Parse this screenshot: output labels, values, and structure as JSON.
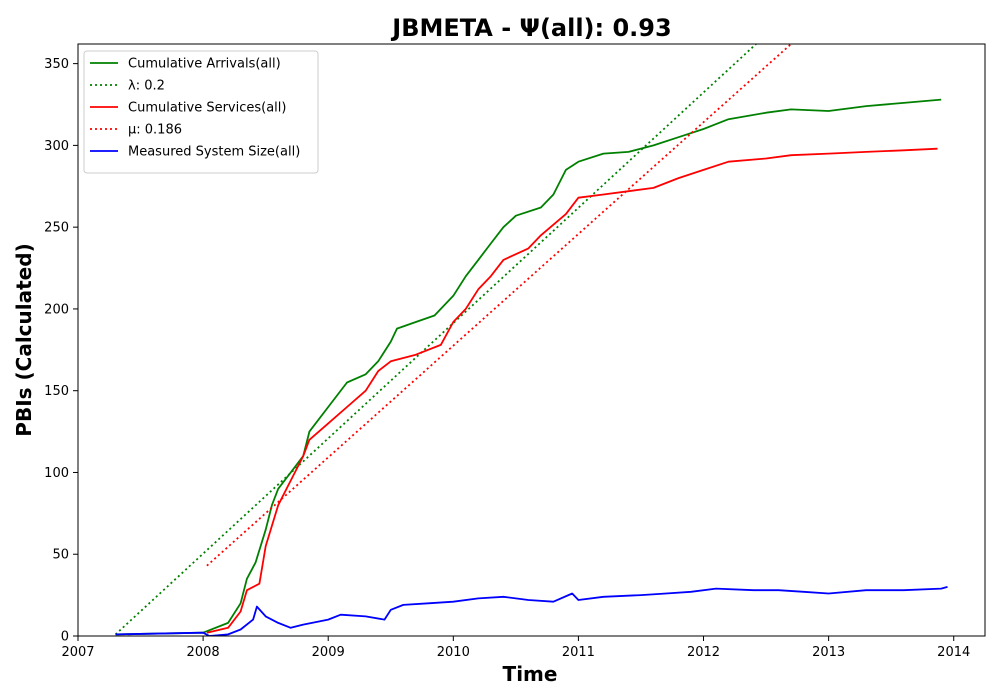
{
  "chart_data": {
    "type": "line",
    "title": "JBMETA -  Ψ(all): 0.93",
    "xlabel": "Time",
    "ylabel": "PBIs (Calculated)",
    "xlim": [
      2007.0,
      2014.25
    ],
    "ylim": [
      0,
      362
    ],
    "x_ticks": [
      2007,
      2008,
      2009,
      2010,
      2011,
      2012,
      2013,
      2014
    ],
    "y_ticks": [
      0,
      50,
      100,
      150,
      200,
      250,
      300,
      350
    ],
    "grid": false,
    "legend_position": "top-left",
    "series": [
      {
        "name": "Cumulative Arrivals(all)",
        "color": "#008000",
        "style": "solid",
        "points": [
          [
            2007.3,
            1
          ],
          [
            2008.0,
            2
          ],
          [
            2008.2,
            8
          ],
          [
            2008.3,
            20
          ],
          [
            2008.35,
            35
          ],
          [
            2008.42,
            45
          ],
          [
            2008.5,
            65
          ],
          [
            2008.55,
            80
          ],
          [
            2008.6,
            90
          ],
          [
            2008.7,
            100
          ],
          [
            2008.8,
            110
          ],
          [
            2008.85,
            125
          ],
          [
            2009.0,
            140
          ],
          [
            2009.15,
            155
          ],
          [
            2009.3,
            160
          ],
          [
            2009.4,
            168
          ],
          [
            2009.5,
            180
          ],
          [
            2009.55,
            188
          ],
          [
            2009.7,
            192
          ],
          [
            2009.85,
            196
          ],
          [
            2010.0,
            208
          ],
          [
            2010.1,
            220
          ],
          [
            2010.2,
            230
          ],
          [
            2010.3,
            240
          ],
          [
            2010.4,
            250
          ],
          [
            2010.5,
            257
          ],
          [
            2010.7,
            262
          ],
          [
            2010.8,
            270
          ],
          [
            2010.9,
            285
          ],
          [
            2011.0,
            290
          ],
          [
            2011.2,
            295
          ],
          [
            2011.4,
            296
          ],
          [
            2011.6,
            300
          ],
          [
            2011.8,
            305
          ],
          [
            2012.0,
            310
          ],
          [
            2012.2,
            316
          ],
          [
            2012.5,
            320
          ],
          [
            2012.7,
            322
          ],
          [
            2013.0,
            321
          ],
          [
            2013.3,
            324
          ],
          [
            2013.6,
            326
          ],
          [
            2013.9,
            328
          ]
        ]
      },
      {
        "name": "λ: 0.2",
        "color": "#008000",
        "style": "dotted",
        "points": [
          [
            2007.3,
            1
          ],
          [
            2012.42,
            362
          ]
        ]
      },
      {
        "name": "Cumulative Services(all)",
        "color": "#ff0000",
        "style": "solid",
        "points": [
          [
            2008.03,
            2
          ],
          [
            2008.2,
            5
          ],
          [
            2008.3,
            15
          ],
          [
            2008.35,
            28
          ],
          [
            2008.45,
            32
          ],
          [
            2008.5,
            55
          ],
          [
            2008.6,
            80
          ],
          [
            2008.7,
            95
          ],
          [
            2008.8,
            110
          ],
          [
            2008.85,
            120
          ],
          [
            2009.0,
            130
          ],
          [
            2009.15,
            140
          ],
          [
            2009.3,
            150
          ],
          [
            2009.4,
            162
          ],
          [
            2009.5,
            168
          ],
          [
            2009.7,
            172
          ],
          [
            2009.9,
            178
          ],
          [
            2010.0,
            192
          ],
          [
            2010.1,
            200
          ],
          [
            2010.2,
            212
          ],
          [
            2010.3,
            220
          ],
          [
            2010.4,
            230
          ],
          [
            2010.6,
            237
          ],
          [
            2010.7,
            245
          ],
          [
            2010.9,
            258
          ],
          [
            2011.0,
            268
          ],
          [
            2011.2,
            270
          ],
          [
            2011.4,
            272
          ],
          [
            2011.6,
            274
          ],
          [
            2011.8,
            280
          ],
          [
            2012.0,
            285
          ],
          [
            2012.2,
            290
          ],
          [
            2012.5,
            292
          ],
          [
            2012.7,
            294
          ],
          [
            2013.0,
            295
          ],
          [
            2013.3,
            296
          ],
          [
            2013.6,
            297
          ],
          [
            2013.87,
            298
          ]
        ]
      },
      {
        "name": "μ: 0.186",
        "color": "#ff0000",
        "style": "dotted",
        "points": [
          [
            2008.03,
            43
          ],
          [
            2012.7,
            362
          ]
        ]
      },
      {
        "name": "Measured System Size(all)",
        "color": "#0000ff",
        "style": "solid",
        "points": [
          [
            2007.3,
            1
          ],
          [
            2008.0,
            2
          ],
          [
            2008.05,
            0
          ],
          [
            2008.2,
            1
          ],
          [
            2008.3,
            4
          ],
          [
            2008.4,
            10
          ],
          [
            2008.43,
            18
          ],
          [
            2008.5,
            12
          ],
          [
            2008.6,
            8
          ],
          [
            2008.7,
            5
          ],
          [
            2008.8,
            7
          ],
          [
            2009.0,
            10
          ],
          [
            2009.1,
            13
          ],
          [
            2009.3,
            12
          ],
          [
            2009.45,
            10
          ],
          [
            2009.5,
            16
          ],
          [
            2009.6,
            19
          ],
          [
            2009.8,
            20
          ],
          [
            2010.0,
            21
          ],
          [
            2010.2,
            23
          ],
          [
            2010.4,
            24
          ],
          [
            2010.6,
            22
          ],
          [
            2010.8,
            21
          ],
          [
            2010.95,
            26
          ],
          [
            2011.0,
            22
          ],
          [
            2011.2,
            24
          ],
          [
            2011.5,
            25
          ],
          [
            2011.7,
            26
          ],
          [
            2011.9,
            27
          ],
          [
            2012.1,
            29
          ],
          [
            2012.4,
            28
          ],
          [
            2012.6,
            28
          ],
          [
            2012.8,
            27
          ],
          [
            2013.0,
            26
          ],
          [
            2013.3,
            28
          ],
          [
            2013.6,
            28
          ],
          [
            2013.9,
            29
          ],
          [
            2013.95,
            30
          ]
        ]
      }
    ]
  }
}
